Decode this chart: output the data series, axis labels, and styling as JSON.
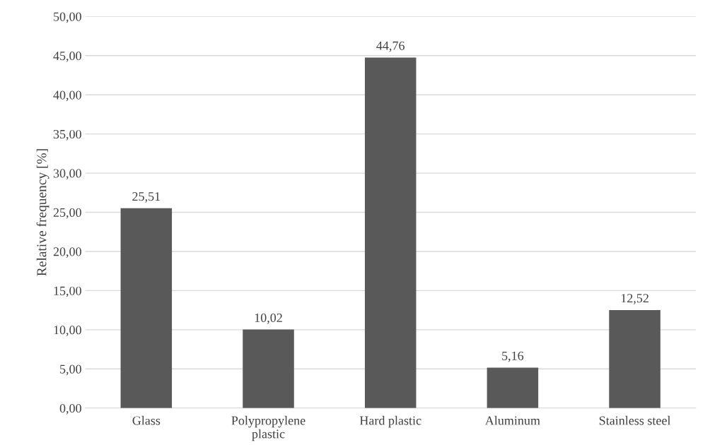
{
  "chart_data": {
    "type": "bar",
    "ylabel": "Relative frequency [%]",
    "categories": [
      "Glass",
      "Polypropylene\nplastic",
      "Hard plastic",
      "Aluminum",
      "Stainless steel"
    ],
    "values": [
      25.51,
      10.02,
      44.76,
      5.16,
      12.52
    ],
    "value_labels": [
      "25,51",
      "10,02",
      "44,76",
      "5,16",
      "12,52"
    ],
    "color": "#595959",
    "ylim": [
      0,
      50
    ],
    "yticks": [
      {
        "value": 0,
        "label": "0,00"
      },
      {
        "value": 5,
        "label": "5,00"
      },
      {
        "value": 10,
        "label": "10,00"
      },
      {
        "value": 15,
        "label": "15,00"
      },
      {
        "value": 20,
        "label": "20,00"
      },
      {
        "value": 25,
        "label": "25,00"
      },
      {
        "value": 30,
        "label": "30,00"
      },
      {
        "value": 35,
        "label": "35,00"
      },
      {
        "value": 40,
        "label": "40,00"
      },
      {
        "value": 45,
        "label": "45,00"
      },
      {
        "value": 50,
        "label": "50,00"
      }
    ],
    "grid": "y"
  }
}
